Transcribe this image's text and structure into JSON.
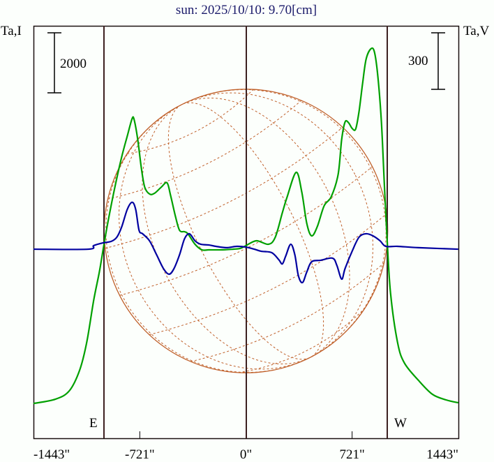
{
  "chart_data": {
    "type": "line",
    "title": "sun: 2025/10/10: 9.70[cm]",
    "ylabel_left": "Ta,I",
    "ylabel_right": "Ta,V",
    "scale_bar_left": "2000",
    "scale_bar_right": "300",
    "scale_bar_left_value": 2000,
    "scale_bar_right_value": 300,
    "limb_labels": {
      "east": "E",
      "west": "W"
    },
    "xlim": [
      -1443,
      1443
    ],
    "ylim_I": [
      -1160,
      12580
    ],
    "ylim_V": [
      -996,
      1168
    ],
    "x_ticks": [
      {
        "value": -1443,
        "label": "-1443\""
      },
      {
        "value": -721,
        "label": "-721\""
      },
      {
        "value": 0,
        "label": "0\""
      },
      {
        "value": 721,
        "label": "721\""
      },
      {
        "value": 1443,
        "label": "1443\""
      }
    ],
    "limb_arcsec": [
      -963,
      963
    ],
    "colors": {
      "I": "#00a000",
      "V": "#0000a0",
      "limb_lines": "#3c2020",
      "disk": "#c0602a",
      "title": "#1a1a6a"
    },
    "series": [
      {
        "name": "I",
        "x": [
          -1443,
          -1295,
          -1200,
          -1129,
          -1081,
          -1034,
          -996,
          -968,
          -939,
          -892,
          -844,
          -806,
          -773,
          -759,
          -735,
          -711,
          -688,
          -655,
          -621,
          -574,
          -536,
          -512,
          -479,
          -451,
          -417,
          -394,
          -346,
          -299,
          -251,
          -157,
          -85,
          -38,
          0,
          71,
          152,
          199,
          247,
          280,
          341,
          379,
          413,
          446,
          484,
          531,
          579,
          626,
          650,
          673,
          697,
          721,
          745,
          768,
          792,
          816,
          849,
          873,
          896,
          920,
          939,
          958,
          982,
          1029,
          1076,
          1172,
          1267,
          1361,
          1442
        ],
        "values": [
          0,
          140,
          419,
          1116,
          2047,
          3442,
          4373,
          5187,
          6001,
          7164,
          8211,
          8909,
          9490,
          9444,
          8792,
          7862,
          7211,
          6978,
          7001,
          7211,
          7350,
          6932,
          6234,
          5768,
          5722,
          5652,
          5303,
          5117,
          5117,
          5117,
          5140,
          5164,
          5257,
          5420,
          5303,
          5536,
          6350,
          6885,
          7699,
          7048,
          6001,
          5583,
          5885,
          6583,
          6885,
          7629,
          8792,
          9374,
          9351,
          9164,
          9141,
          9723,
          10653,
          11467,
          11816,
          11700,
          10886,
          9374,
          7397,
          5536,
          3675,
          2047,
          1349,
          768,
          303,
          116,
          23
        ]
      },
      {
        "name": "V",
        "x": [
          -1443,
          -1072,
          -1034,
          -972,
          -915,
          -877,
          -844,
          -806,
          -773,
          -749,
          -726,
          -702,
          -655,
          -607,
          -560,
          -522,
          -489,
          -451,
          -417,
          -384,
          -346,
          -308,
          -251,
          -204,
          -133,
          -62,
          0,
          57,
          104,
          175,
          223,
          247,
          270,
          304,
          332,
          356,
          384,
          413,
          446,
          508,
          588,
          617,
          650,
          673,
          721,
          768,
          816,
          863,
          911,
          949,
          1029,
          1172,
          1442
        ],
        "values": [
          -4,
          -4,
          15,
          29,
          37,
          59,
          113,
          205,
          242,
          205,
          95,
          77,
          40,
          -33,
          -106,
          -135,
          -106,
          -33,
          51,
          77,
          40,
          22,
          18,
          11,
          4,
          11,
          7,
          -4,
          -15,
          -22,
          -59,
          -81,
          -40,
          22,
          -33,
          -143,
          -179,
          -124,
          -70,
          -62,
          -51,
          -88,
          -161,
          -106,
          -15,
          59,
          77,
          66,
          40,
          11,
          11,
          4,
          -4
        ]
      }
    ]
  }
}
